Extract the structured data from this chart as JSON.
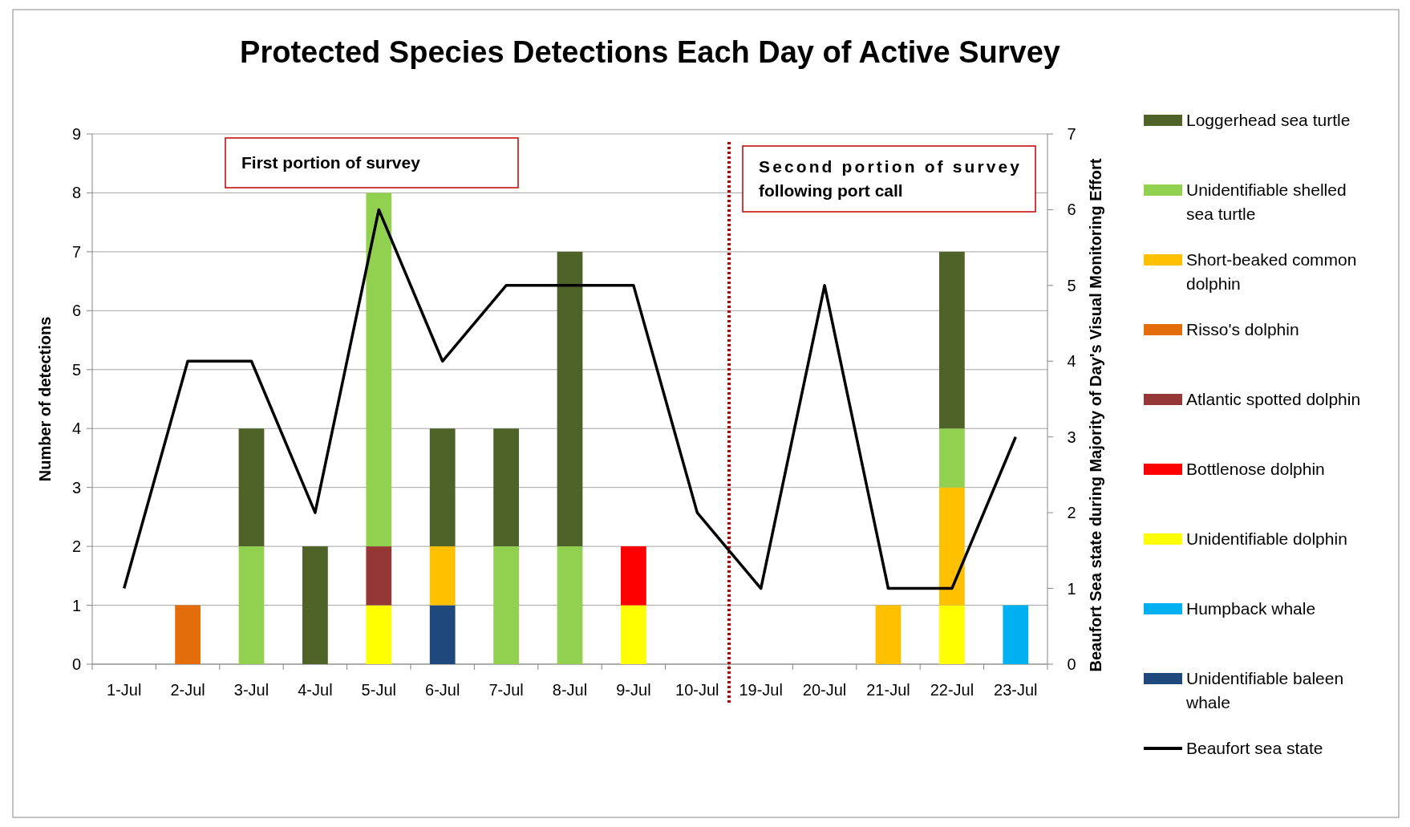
{
  "chart_data": {
    "type": "bar",
    "stacked": true,
    "title": "Protected Species Detections Each Day of Active Survey",
    "ylabel": "Number of detections",
    "y2label": "Beaufort Sea state during Majority of Day's Visual Monitoring Effort",
    "categories": [
      "1-Jul",
      "2-Jul",
      "3-Jul",
      "4-Jul",
      "5-Jul",
      "6-Jul",
      "7-Jul",
      "8-Jul",
      "9-Jul",
      "10-Jul",
      "19-Jul",
      "20-Jul",
      "21-Jul",
      "22-Jul",
      "23-Jul"
    ],
    "series": [
      {
        "name": "Unidentifiable baleen whale",
        "color": "#1f497d",
        "values": [
          0,
          0,
          0,
          0,
          0,
          1,
          0,
          0,
          0,
          0,
          0,
          0,
          0,
          0,
          0
        ]
      },
      {
        "name": "Humpback whale",
        "color": "#00b0f0",
        "values": [
          0,
          0,
          0,
          0,
          0,
          0,
          0,
          0,
          0,
          0,
          0,
          0,
          0,
          0,
          1
        ]
      },
      {
        "name": "Unidentifiable dolphin",
        "color": "#ffff00",
        "values": [
          0,
          0,
          0,
          0,
          1,
          0,
          0,
          0,
          1,
          0,
          0,
          0,
          0,
          1,
          0
        ]
      },
      {
        "name": "Bottlenose dolphin",
        "color": "#ff0000",
        "values": [
          0,
          0,
          0,
          0,
          0,
          0,
          0,
          0,
          1,
          0,
          0,
          0,
          0,
          0,
          0
        ]
      },
      {
        "name": "Atlantic spotted dolphin",
        "color": "#953735",
        "values": [
          0,
          0,
          0,
          0,
          1,
          0,
          0,
          0,
          0,
          0,
          0,
          0,
          0,
          0,
          0
        ]
      },
      {
        "name": "Risso's dolphin",
        "color": "#e46c0a",
        "values": [
          0,
          1,
          0,
          0,
          0,
          0,
          0,
          0,
          0,
          0,
          0,
          0,
          0,
          0,
          0
        ]
      },
      {
        "name": "Short-beaked common dolphin",
        "color": "#ffc000",
        "values": [
          0,
          0,
          0,
          0,
          0,
          1,
          0,
          0,
          0,
          0,
          0,
          0,
          1,
          2,
          0
        ]
      },
      {
        "name": "Unidentifiable shelled sea turtle",
        "color": "#92d050",
        "values": [
          0,
          0,
          2,
          0,
          6,
          0,
          2,
          2,
          0,
          0,
          0,
          0,
          0,
          1,
          0
        ]
      },
      {
        "name": "Loggerhead sea turtle",
        "color": "#4f6228",
        "values": [
          0,
          0,
          2,
          2,
          0,
          2,
          2,
          5,
          0,
          0,
          0,
          0,
          0,
          3,
          0
        ]
      },
      {
        "name": "Beaufort sea state",
        "type": "line",
        "axis": "y2",
        "color": "#000000",
        "values": [
          1,
          4,
          4,
          2,
          6,
          4,
          5,
          5,
          5,
          2,
          1,
          5,
          1,
          1,
          3
        ]
      }
    ],
    "ylim": [
      0,
      9
    ],
    "yticks": [
      0,
      1,
      2,
      3,
      4,
      5,
      6,
      7,
      8,
      9
    ],
    "y2lim": [
      0,
      7
    ],
    "y2ticks": [
      0,
      1,
      2,
      3,
      4,
      5,
      6,
      7
    ],
    "ref_lines": [
      {
        "axis": "x",
        "value": "10-Jul",
        "color": "#c00000",
        "line_style": "dotted"
      }
    ],
    "grid": "y",
    "legend": "right",
    "marker": "none",
    "line_style": "solid",
    "annotations": [
      "First portion of survey",
      "Second portion of survey following port call"
    ]
  }
}
